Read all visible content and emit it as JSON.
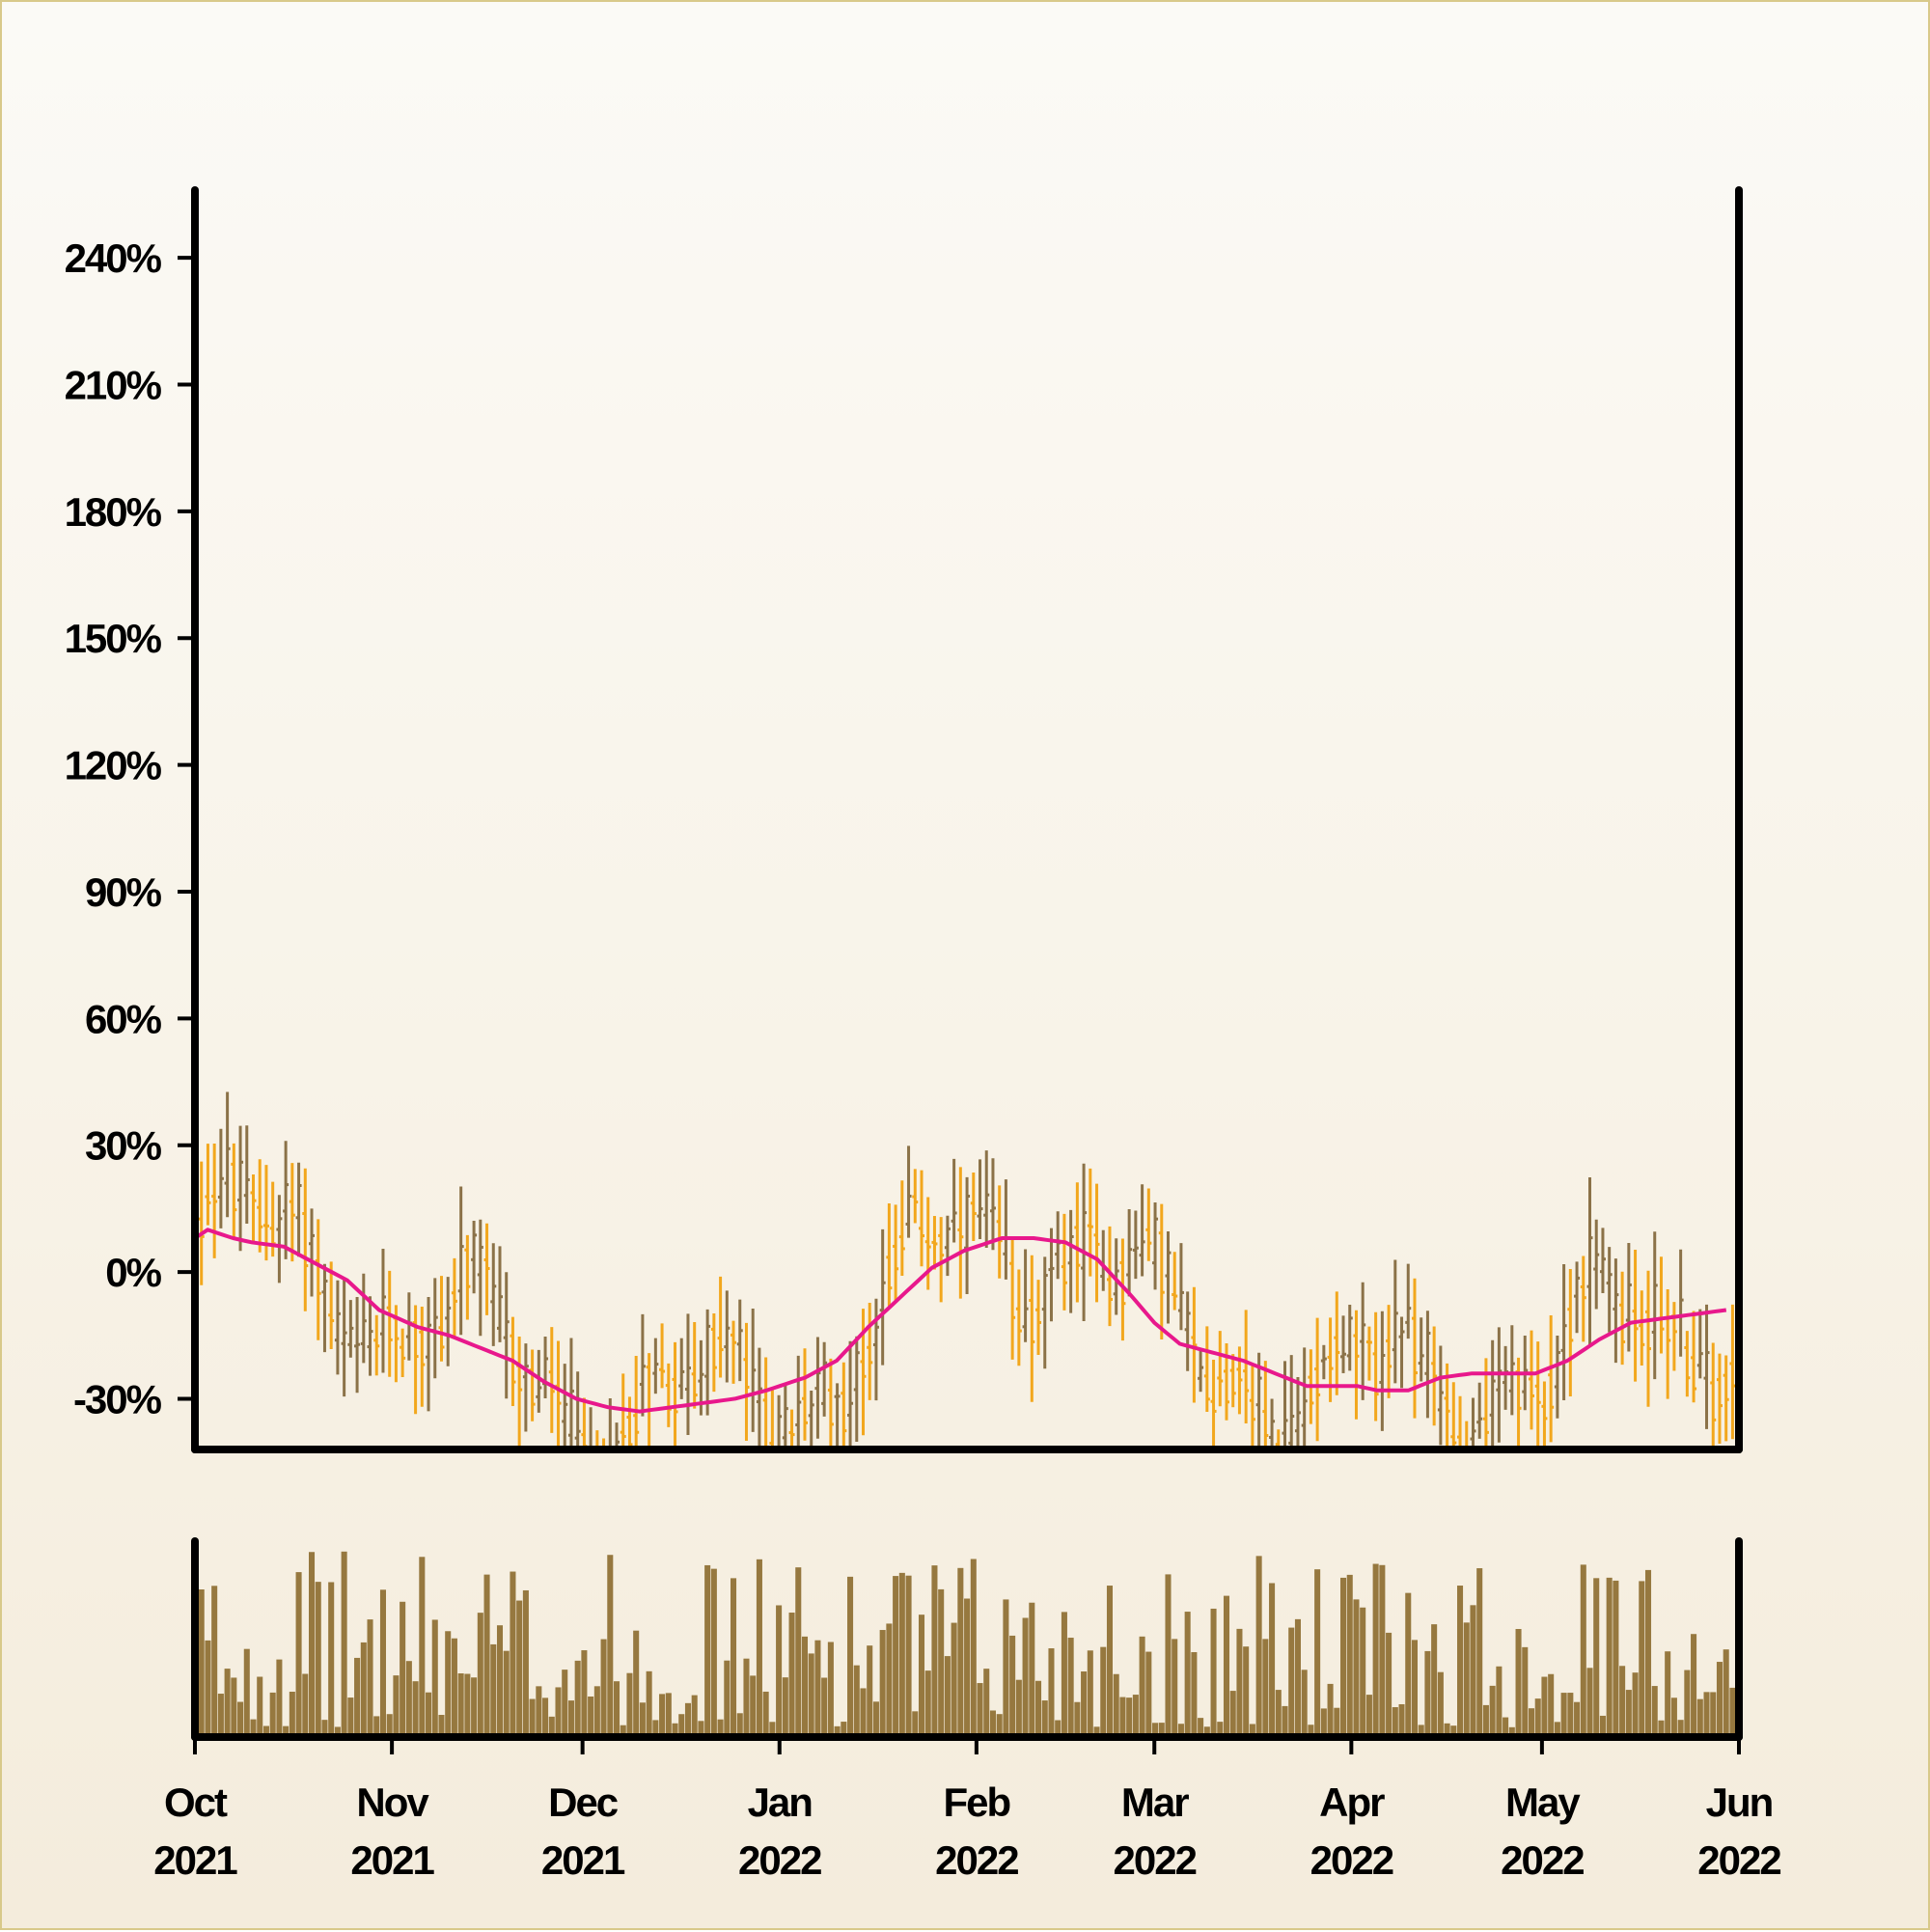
{
  "chart_data": {
    "type": "ohlc",
    "title": "",
    "xlabel": "",
    "ylabel": "",
    "colors": {
      "up": "#8b7248",
      "down": "#f2a71d",
      "moving_average": "#e8188c",
      "volume": "#96783f",
      "axis": "#000000"
    },
    "price_panel": {
      "y_unit": "percent change",
      "ylim": [
        -42,
        256
      ],
      "yticks": [
        -30,
        0,
        30,
        60,
        90,
        120,
        150,
        180,
        210,
        240
      ],
      "ytick_labels": [
        "-30%",
        "0%",
        "30%",
        "60%",
        "90%",
        "120%",
        "150%",
        "180%",
        "210%",
        "240%"
      ],
      "grid": false
    },
    "x_axis": {
      "range": [
        "2021-10-01",
        "2022-06-01"
      ],
      "ticks": [
        {
          "date": "2021-10-01",
          "month": "Oct",
          "year": "2021"
        },
        {
          "date": "2021-11-01",
          "month": "Nov",
          "year": "2021"
        },
        {
          "date": "2021-12-01",
          "month": "Dec",
          "year": "2021"
        },
        {
          "date": "2022-01-01",
          "month": "Jan",
          "year": "2022"
        },
        {
          "date": "2022-02-01",
          "month": "Feb",
          "year": "2022"
        },
        {
          "date": "2022-03-01",
          "month": "Mar",
          "year": "2022"
        },
        {
          "date": "2022-04-01",
          "month": "Apr",
          "year": "2022"
        },
        {
          "date": "2022-05-01",
          "month": "May",
          "year": "2022"
        },
        {
          "date": "2022-06-01",
          "month": "Jun",
          "year": "2022"
        }
      ]
    },
    "moving_average": {
      "dates": [
        "2021-10-01",
        "2021-10-03",
        "2021-10-05",
        "2021-10-07",
        "2021-10-10",
        "2021-10-15",
        "2021-10-20",
        "2021-10-25",
        "2021-10-30",
        "2021-11-05",
        "2021-11-10",
        "2021-11-15",
        "2021-11-20",
        "2021-11-25",
        "2021-11-30",
        "2021-12-05",
        "2021-12-10",
        "2021-12-15",
        "2021-12-20",
        "2021-12-25",
        "2021-12-30",
        "2022-01-05",
        "2022-01-10",
        "2022-01-15",
        "2022-01-20",
        "2022-01-25",
        "2022-01-30",
        "2022-02-05",
        "2022-02-10",
        "2022-02-15",
        "2022-02-20",
        "2022-02-25",
        "2022-03-01",
        "2022-03-05",
        "2022-03-10",
        "2022-03-15",
        "2022-03-20",
        "2022-03-25",
        "2022-03-30",
        "2022-04-02",
        "2022-04-05",
        "2022-04-10",
        "2022-04-15",
        "2022-04-20",
        "2022-04-25",
        "2022-04-30",
        "2022-05-05",
        "2022-05-10",
        "2022-05-15",
        "2022-05-20",
        "2022-05-25",
        "2022-05-30"
      ],
      "values": [
        8,
        10,
        9,
        8,
        7,
        6,
        2,
        -2,
        -9,
        -13,
        -15,
        -18,
        -21,
        -26,
        -30,
        -32,
        -33,
        -32,
        -31,
        -30,
        -28,
        -25,
        -21,
        -13,
        -6,
        1,
        5,
        8,
        8,
        7,
        3,
        -5,
        -12,
        -17,
        -19,
        -21,
        -24,
        -27,
        -27,
        -27,
        -28,
        -28,
        -25,
        -24,
        -24,
        -24,
        -21,
        -16,
        -12,
        -11,
        -10,
        -9
      ]
    },
    "ohlc_series": {
      "n": 238,
      "start": "2021-10-01",
      "end": "2022-05-31",
      "noise": 17,
      "note_trend": "daily bars follow the moving average"
    },
    "volume_panel": {
      "ylim": [
        0,
        100
      ],
      "typical_range": [
        5,
        95
      ]
    }
  }
}
